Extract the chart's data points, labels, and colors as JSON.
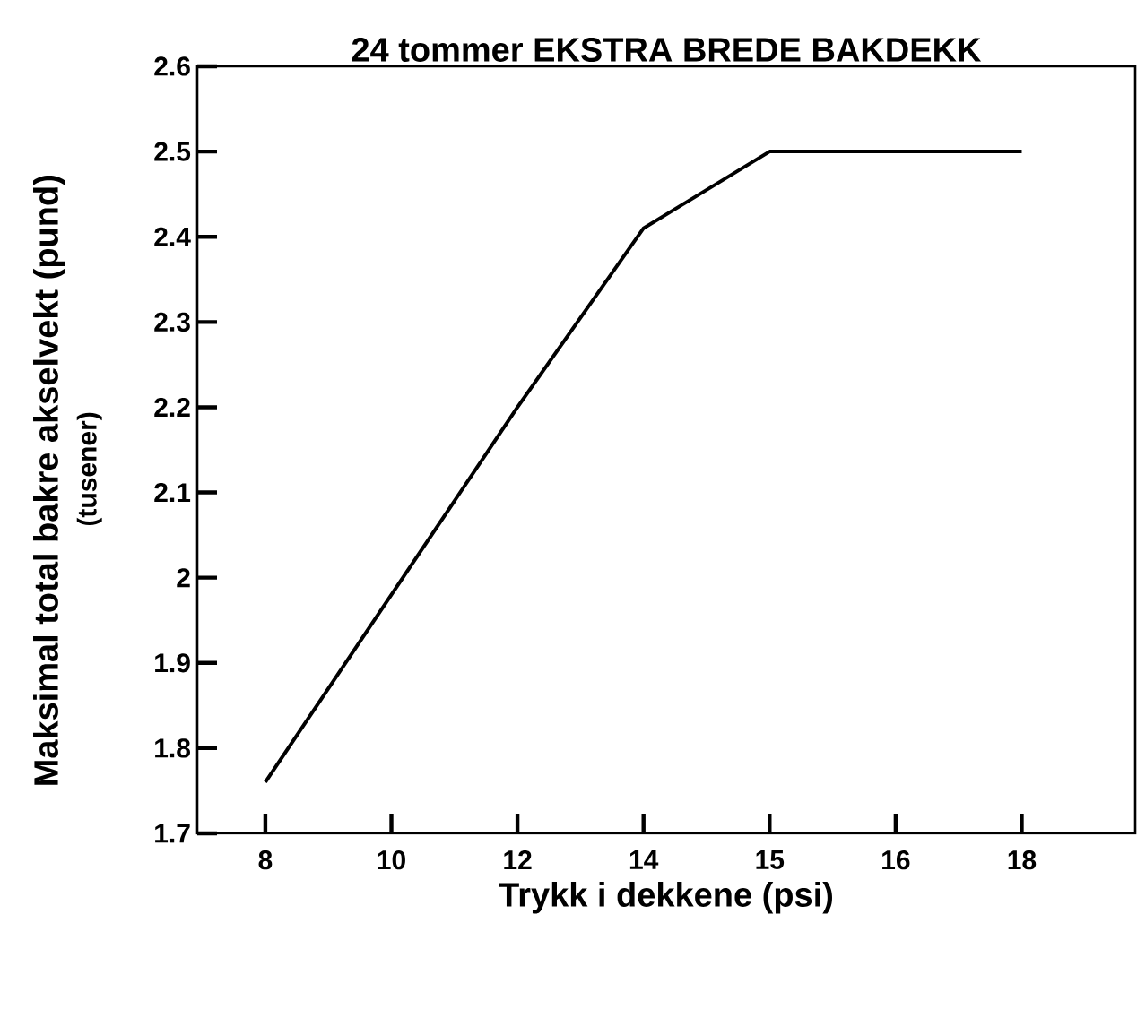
{
  "chart_data": {
    "type": "line",
    "title": "24 tommer EKSTRA BREDE BAKDEKK",
    "xlabel": "Trykk i dekkene (psi)",
    "ylabel": "Maksimal total bakre akselvekt (pund)",
    "annotations": [
      "(tusener)"
    ],
    "categories": [
      "8",
      "10",
      "12",
      "14",
      "15",
      "16",
      "18"
    ],
    "values": [
      1.76,
      1.98,
      2.2,
      2.41,
      2.5,
      2.5,
      2.5
    ],
    "color": "#000000",
    "ylim": [
      1.7,
      2.6
    ],
    "yticks": [
      1.7,
      1.8,
      1.9,
      2,
      2.1,
      2.2,
      2.3,
      2.4,
      2.5,
      2.6
    ]
  }
}
